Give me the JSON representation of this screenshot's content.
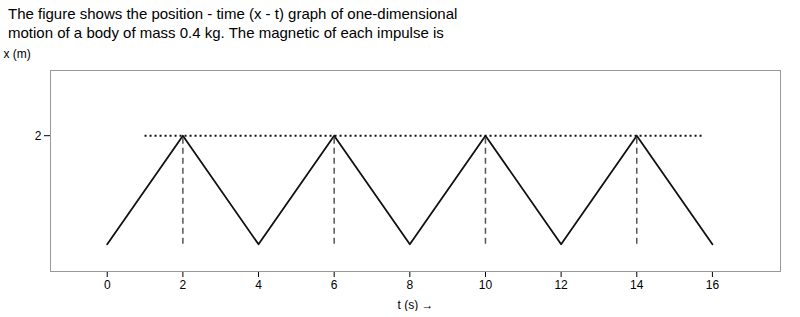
{
  "chart_data": {
    "type": "line",
    "title": "The figure shows the position - time (x - t) graph of one-dimensional\nmotion of a body of mass 0.4 kg. The magnetic of each impulse is",
    "x_label": "t (s) →",
    "y_label": "x (m)",
    "x": [
      0,
      2,
      4,
      6,
      8,
      10,
      12,
      14,
      16
    ],
    "values": [
      0,
      2,
      0,
      2,
      0,
      2,
      0,
      2,
      0
    ],
    "color": "#111111",
    "xlim": [
      -1.5,
      17.8
    ],
    "ylim": [
      -0.5,
      3.2
    ],
    "xticks": [
      0,
      2,
      4,
      6,
      8,
      10,
      12,
      14,
      16
    ],
    "yticks": [
      2
    ],
    "grid": false,
    "hline": {
      "y": 2,
      "x": [
        1,
        15.8
      ],
      "color": "#111111",
      "line_style": "dotted"
    },
    "vlines": {
      "x": [
        2,
        6,
        10,
        14
      ],
      "y": [
        0,
        2
      ],
      "color": "#555555",
      "line_style": "dashed"
    }
  }
}
